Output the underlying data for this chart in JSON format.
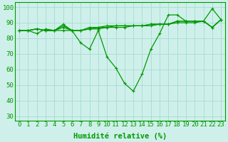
{
  "x": [
    0,
    1,
    2,
    3,
    4,
    5,
    6,
    7,
    8,
    9,
    10,
    11,
    12,
    13,
    14,
    15,
    16,
    17,
    18,
    19,
    20,
    21,
    22,
    23
  ],
  "line1": [
    85,
    85,
    86,
    85,
    85,
    89,
    85,
    85,
    87,
    87,
    88,
    88,
    88,
    88,
    88,
    89,
    89,
    89,
    91,
    91,
    91,
    91,
    87,
    92
  ],
  "line2": [
    85,
    85,
    86,
    85,
    85,
    88,
    85,
    85,
    86,
    87,
    87,
    88,
    88,
    88,
    88,
    89,
    89,
    89,
    91,
    91,
    91,
    91,
    87,
    92
  ],
  "line3": [
    85,
    85,
    86,
    85,
    85,
    87,
    85,
    85,
    86,
    86,
    87,
    87,
    87,
    88,
    88,
    88,
    89,
    89,
    90,
    90,
    90,
    91,
    87,
    92
  ],
  "line_main": [
    85,
    85,
    83,
    86,
    85,
    85,
    85,
    77,
    73,
    85,
    68,
    61,
    51,
    46,
    57,
    73,
    83,
    95,
    95,
    91,
    91,
    91,
    99,
    92
  ],
  "bg_color": "#cff0ea",
  "grid_color": "#aaddd6",
  "line_color": "#009900",
  "ylabel_ticks": [
    30,
    40,
    50,
    60,
    70,
    80,
    90,
    100
  ],
  "xlabel": "Humidité relative (%)",
  "ylim": [
    27,
    103
  ],
  "xlim": [
    -0.5,
    23.5
  ],
  "tick_fontsize": 6.5,
  "xlabel_fontsize": 7.5
}
